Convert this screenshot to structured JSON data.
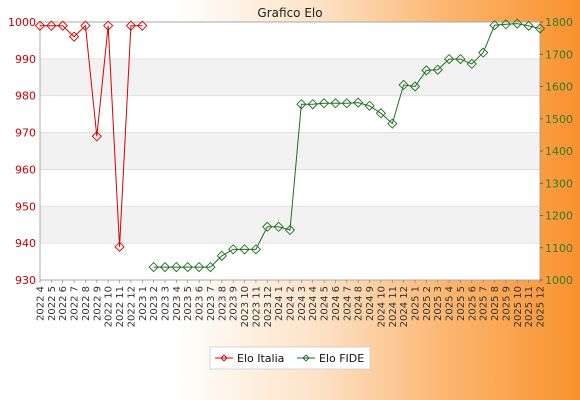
{
  "chart_data": {
    "type": "line",
    "title": "Grafico Elo",
    "categories": [
      "2022 4",
      "2022 5",
      "2022 6",
      "2022 7",
      "2022 8",
      "2022 9",
      "2022 10",
      "2022 11",
      "2022 12",
      "2023 1",
      "2023 2",
      "2023 3",
      "2023 4",
      "2023 5",
      "2023 6",
      "2023 7",
      "2023 8",
      "2023 9",
      "2023 10",
      "2023 11",
      "2023 12",
      "2024 1",
      "2024 2",
      "2024 3",
      "2024 4",
      "2024 5",
      "2024 6",
      "2024 7",
      "2024 8",
      "2024 9",
      "2024 10",
      "2024 11",
      "2024 12",
      "2025 1",
      "2025 2",
      "2025 3",
      "2025 4",
      "2025 5",
      "2025 6",
      "2025 7",
      "2025 8",
      "2025 9",
      "2025 10",
      "2025 11",
      "2025 12"
    ],
    "y_left": {
      "ylim": [
        930,
        1000
      ],
      "ticks": [
        "930",
        "940",
        "950",
        "960",
        "970",
        "980",
        "990",
        "1000"
      ],
      "color": "#cc0000"
    },
    "y_right": {
      "ylim": [
        1000,
        1800
      ],
      "ticks": [
        "1000",
        "1100",
        "1200",
        "1300",
        "1400",
        "1500",
        "1600",
        "1700",
        "1800"
      ],
      "color": "#2e7d2e"
    },
    "grid": true,
    "legend_position": "bottom-center",
    "series": [
      {
        "name": "Elo Italia",
        "axis": "left",
        "color": "#dd0000",
        "values": [
          999,
          999,
          999,
          996,
          999,
          969,
          999,
          939,
          999,
          999,
          null,
          null,
          null,
          null,
          null,
          null,
          null,
          null,
          null,
          null,
          null,
          null,
          null,
          null,
          null,
          null,
          null,
          null,
          null,
          null,
          null,
          null,
          null,
          null,
          null,
          null,
          null,
          null,
          null,
          null,
          null,
          null,
          null,
          null,
          null
        ]
      },
      {
        "name": "Elo FIDE",
        "axis": "right",
        "color": "#1e6e1e",
        "values": [
          null,
          null,
          null,
          null,
          null,
          null,
          null,
          null,
          null,
          null,
          1040,
          1040,
          1040,
          1040,
          1040,
          1040,
          1075,
          1095,
          1095,
          1095,
          1165,
          1165,
          1155,
          1545,
          1545,
          1548,
          1548,
          1548,
          1550,
          1540,
          1517,
          1485,
          1605,
          1600,
          1650,
          1652,
          1685,
          1685,
          1670,
          1705,
          1790,
          1793,
          1795,
          1788,
          1780
        ]
      }
    ]
  }
}
